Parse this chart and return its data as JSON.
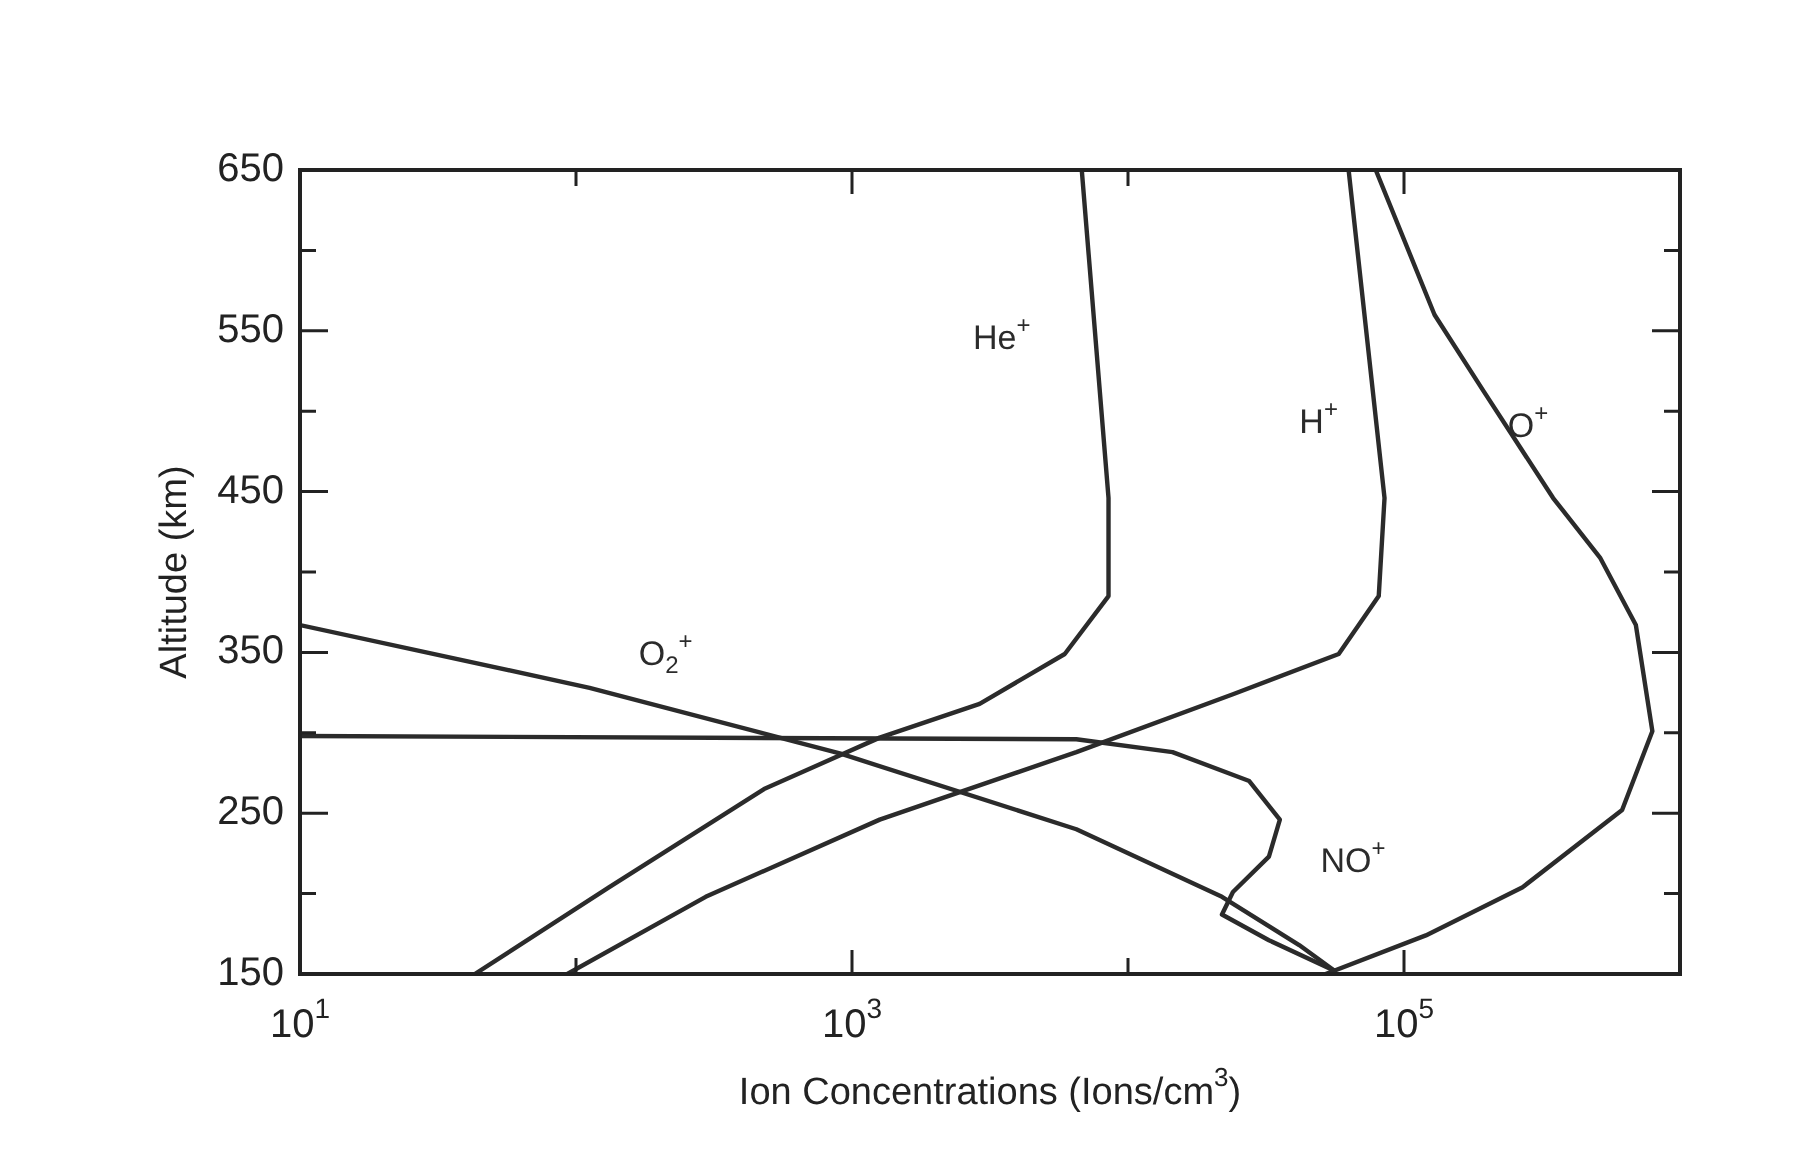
{
  "chart_data": {
    "type": "line",
    "xlabel": "Ion Concentrations (Ions/cm$^{3}$)",
    "ylabel": "Altitude (km)",
    "log": "x",
    "grid": false,
    "legend": false,
    "marker": "none",
    "line_style": "solid",
    "xlim": [
      10,
      1000000
    ],
    "ylim": [
      150,
      650
    ],
    "xticks": [
      {
        "value": 10,
        "label": "10$^{1}$"
      },
      {
        "value": 100,
        "label": null
      },
      {
        "value": 1000,
        "label": "10$^{3}$"
      },
      {
        "value": 10000,
        "label": null
      },
      {
        "value": 100000,
        "label": "10$^{5}$"
      },
      {
        "value": 1000000,
        "label": null
      }
    ],
    "yticks": [
      150,
      {
        "value": 200,
        "label": null
      },
      250,
      {
        "value": 300,
        "label": null
      },
      350,
      {
        "value": 400,
        "label": null
      },
      450,
      {
        "value": 500,
        "label": null
      },
      550,
      {
        "value": 600,
        "label": null
      },
      650
    ],
    "series": [
      {
        "name": "He$^{+}$",
        "color": "#2b2b2b",
        "x": [
          6800,
          8500,
          8500,
          5900,
          2900,
          1260,
          480,
          132,
          43
        ],
        "values": [
          650,
          446,
          385,
          349,
          318,
          297,
          265,
          204,
          150
        ]
      },
      {
        "name": "H$^{+}$",
        "color": "#2b2b2b",
        "x": [
          63000,
          85000,
          81000,
          58000,
          24000,
          6500,
          1260,
          295,
          93
        ],
        "values": [
          650,
          446,
          385,
          349,
          324,
          288,
          246,
          198,
          150
        ]
      },
      {
        "name": "O$^{+}$",
        "color": "#2b2b2b",
        "x": [
          79000,
          129000,
          195000,
          347000,
          513000,
          692000,
          794000,
          617000,
          269000,
          120000,
          52000
        ],
        "values": [
          650,
          560,
          512,
          446,
          409,
          367,
          301,
          252,
          204,
          174,
          150
        ]
      },
      {
        "name": "O$_{2}$$^{+}$",
        "color": "#2b2b2b",
        "x": [
          10,
          112,
          910,
          6500,
          21900,
          41700,
          56000
        ],
        "values": [
          367,
          328,
          287,
          240,
          198,
          168,
          152
        ]
      },
      {
        "name": "NO$^{+}$",
        "color": "#2b2b2b",
        "x": [
          10,
          6500,
          14500,
          27500,
          35500,
          32400,
          24000,
          21900,
          32400,
          56000
        ],
        "values": [
          298,
          296,
          288,
          270,
          246,
          223,
          201,
          187,
          171,
          152
        ]
      }
    ]
  }
}
